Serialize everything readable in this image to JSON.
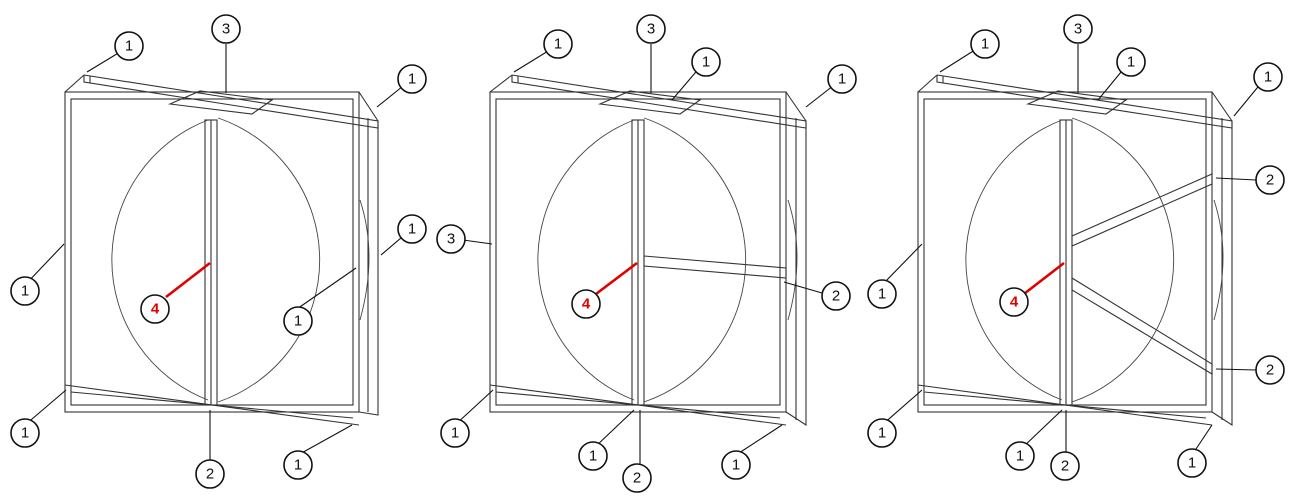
{
  "diagrams": [
    {
      "callouts": [
        {
          "label": "1",
          "color": "black"
        },
        {
          "label": "3",
          "color": "black"
        },
        {
          "label": "1",
          "color": "black"
        },
        {
          "label": "1",
          "color": "black"
        },
        {
          "label": "1",
          "color": "black"
        },
        {
          "label": "1",
          "color": "black"
        },
        {
          "label": "4",
          "color": "red"
        },
        {
          "label": "1",
          "color": "black"
        },
        {
          "label": "2",
          "color": "black"
        },
        {
          "label": "1",
          "color": "black"
        }
      ]
    },
    {
      "callouts": [
        {
          "label": "1",
          "color": "black"
        },
        {
          "label": "3",
          "color": "black"
        },
        {
          "label": "1",
          "color": "black"
        },
        {
          "label": "1",
          "color": "black"
        },
        {
          "label": "3",
          "color": "black"
        },
        {
          "label": "4",
          "color": "red"
        },
        {
          "label": "2",
          "color": "black"
        },
        {
          "label": "1",
          "color": "black"
        },
        {
          "label": "1",
          "color": "black"
        },
        {
          "label": "2",
          "color": "black"
        },
        {
          "label": "1",
          "color": "black"
        }
      ]
    },
    {
      "callouts": [
        {
          "label": "1",
          "color": "black"
        },
        {
          "label": "3",
          "color": "black"
        },
        {
          "label": "1",
          "color": "black"
        },
        {
          "label": "1",
          "color": "black"
        },
        {
          "label": "2",
          "color": "black"
        },
        {
          "label": "1",
          "color": "black"
        },
        {
          "label": "4",
          "color": "red"
        },
        {
          "label": "2",
          "color": "black"
        },
        {
          "label": "1",
          "color": "black"
        },
        {
          "label": "1",
          "color": "black"
        },
        {
          "label": "2",
          "color": "black"
        },
        {
          "label": "1",
          "color": "black"
        }
      ]
    }
  ],
  "colors": {
    "callout_highlight": "#e00000",
    "line": "#333333"
  }
}
